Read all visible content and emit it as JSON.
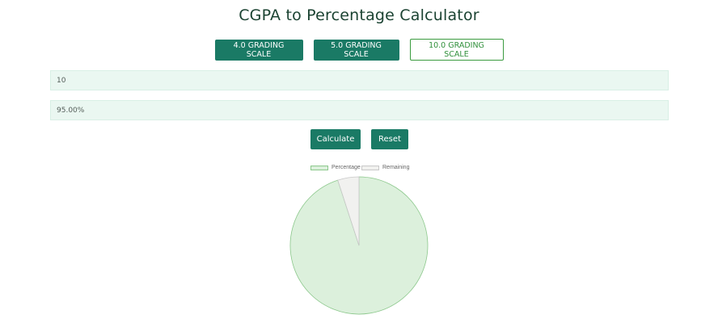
{
  "title": "CGPA to Percentage Calculator",
  "scales": [
    {
      "label": "4.0 GRADING SCALE",
      "active": false
    },
    {
      "label": "5.0 GRADING SCALE",
      "active": false
    },
    {
      "label": "10.0 GRADING SCALE",
      "active": true
    }
  ],
  "cgpa_input": {
    "value": "10"
  },
  "percentage_output": {
    "value": "95.00%"
  },
  "actions": {
    "calculate_label": "Calculate",
    "reset_label": "Reset"
  },
  "colors": {
    "primary": "#1a7a65",
    "title": "#1b4332",
    "active_outline": "#3a9b3f",
    "input_bg": "#eaf7f1"
  },
  "chart_data": {
    "type": "pie",
    "labels": [
      "Percentage",
      "Remaining"
    ],
    "values": [
      95,
      5
    ],
    "colors": [
      "#dcf0dc",
      "#f1f1ef"
    ],
    "border_colors": [
      "#8cc88c",
      "#c8c8c8"
    ],
    "legend_position": "top"
  }
}
